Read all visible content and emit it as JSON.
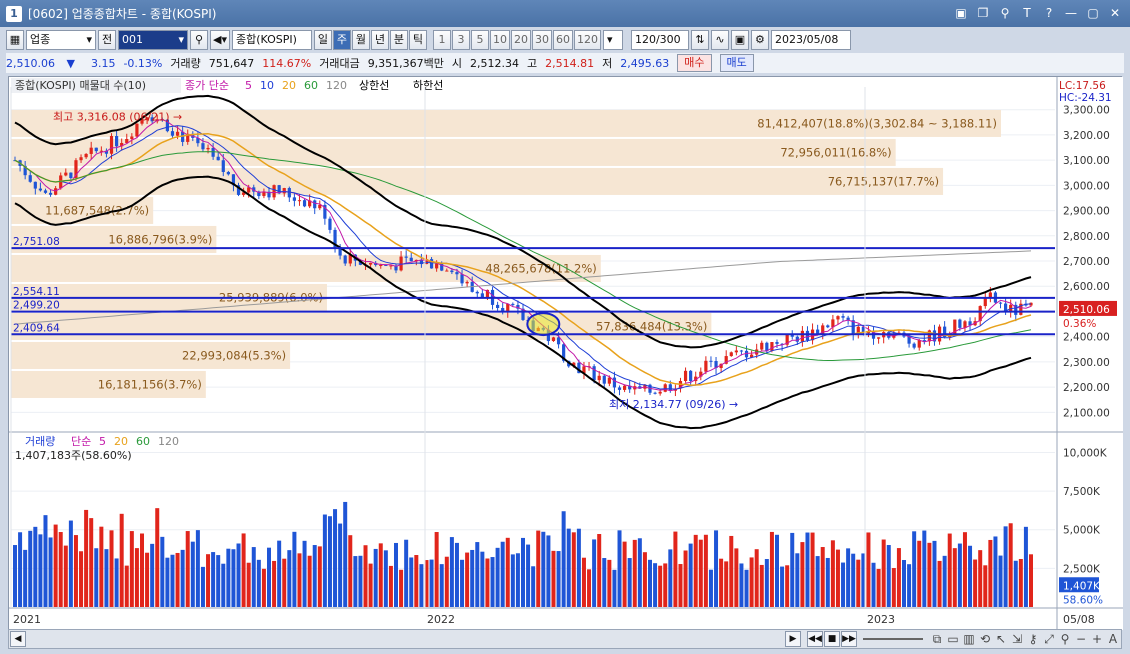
{
  "window": {
    "app_number": "1",
    "title": "[0602] 업종종합차트 - 종합(KOSPI)",
    "controls": [
      "▣",
      "❐",
      "⚲",
      "T",
      "?",
      "—",
      "▢",
      "✕"
    ]
  },
  "toolbar": {
    "category_select": "업종",
    "all_label": "전",
    "code_input": "001",
    "name_field": "종합(KOSPI)",
    "period_tabs": [
      {
        "label": "일",
        "active": false
      },
      {
        "label": "주",
        "active": true
      },
      {
        "label": "월",
        "active": false
      },
      {
        "label": "년",
        "active": false
      },
      {
        "label": "분",
        "active": false
      },
      {
        "label": "틱",
        "active": false
      }
    ],
    "interval_buttons": [
      "1",
      "3",
      "5",
      "10",
      "20",
      "30",
      "60",
      "120"
    ],
    "count_field": "120/300",
    "date_field": "2023/05/08"
  },
  "price_bar": {
    "current": "2,510.06",
    "arrow": "▼",
    "change": "3.15",
    "change_pct": "-0.13%",
    "volume_label": "거래량",
    "volume": "751,647",
    "volume_pct": "114.67%",
    "amount_label": "거래대금",
    "amount": "9,351,367백만",
    "open_label": "시",
    "open": "2,512.34",
    "high_label": "고",
    "high": "2,514.81",
    "low_label": "저",
    "low": "2,495.63",
    "buy_button": "매수",
    "sell_button": "매도"
  },
  "chart_data": [
    {
      "type": "candlestick",
      "legend": {
        "main": "종합(KOSPI) 매물대 수(10)",
        "ma_label": "종가 단순",
        "ma_periods": [
          "5",
          "10",
          "20",
          "60",
          "120"
        ],
        "upper_limit": "상한선",
        "lower_limit": "하한선"
      },
      "corner_labels": {
        "lc": "LC:17.56",
        "hc": "HC:-24.31"
      },
      "y_ticks": [
        "3,300.00",
        "3,200.00",
        "3,100.00",
        "3,000.00",
        "2,900.00",
        "2,800.00",
        "2,700.00",
        "2,600.00",
        "2,500.00",
        "2,400.00",
        "2,300.00",
        "2,200.00",
        "2,100.00"
      ],
      "ylim": [
        2030,
        3390
      ],
      "last_price_tag": "2,510.06",
      "last_pct_tag": "0.36%",
      "h_lines": [
        {
          "label": "2,751.08",
          "value": 2751.08
        },
        {
          "label": "2,554.11",
          "value": 2554.11
        },
        {
          "label": "2,499.20",
          "value": 2499.2
        },
        {
          "label": "2,409.64",
          "value": 2409.64
        }
      ],
      "volume_profile": [
        {
          "label": "81,412,407(18.8%)(3,302.84 ~ 3,188.11)",
          "low": 3188,
          "high": 3303,
          "pct": 18.8
        },
        {
          "label": "72,956,011(16.8%)",
          "low": 3073,
          "high": 3188,
          "pct": 16.8
        },
        {
          "label": "76,715,137(17.7%)",
          "low": 2958,
          "high": 3073,
          "pct": 17.7
        },
        {
          "label": "11,687,548(2.7%)",
          "low": 2843,
          "high": 2958,
          "pct": 2.7
        },
        {
          "label": "16,886,796(3.9%)",
          "low": 2728,
          "high": 2843,
          "pct": 3.9
        },
        {
          "label": "48,265,678(11.2%)",
          "low": 2613,
          "high": 2728,
          "pct": 11.2
        },
        {
          "label": "25,939,889(6.0%)",
          "low": 2498,
          "high": 2613,
          "pct": 6.0
        },
        {
          "label": "57,836,484(13.3%)",
          "low": 2383,
          "high": 2498,
          "pct": 13.3
        },
        {
          "label": "22,993,084(5.3%)",
          "low": 2268,
          "high": 2383,
          "pct": 5.3
        },
        {
          "label": "16,181,156(3.7%)",
          "low": 2153,
          "high": 2268,
          "pct": 3.7
        }
      ],
      "annotations": {
        "high": "최고 3,316.08 (06/21)",
        "low": "최저 2,134.77 (09/26)"
      }
    },
    {
      "type": "bar",
      "legend": {
        "main": "거래량",
        "ma_label": "단순",
        "ma_periods": [
          "5",
          "20",
          "60",
          "120"
        ],
        "last_value": "1,407,183주(58.60%)"
      },
      "y_ticks": [
        "10,000K",
        "7,500K",
        "5,000K",
        "2,500K"
      ],
      "ylim": [
        0,
        11000
      ],
      "last_tag": "1,407K",
      "last_pct_tag": "58.60%"
    }
  ],
  "x_axis": {
    "labels": [
      "2021",
      "2022",
      "2023"
    ],
    "end_label": "05/08"
  }
}
